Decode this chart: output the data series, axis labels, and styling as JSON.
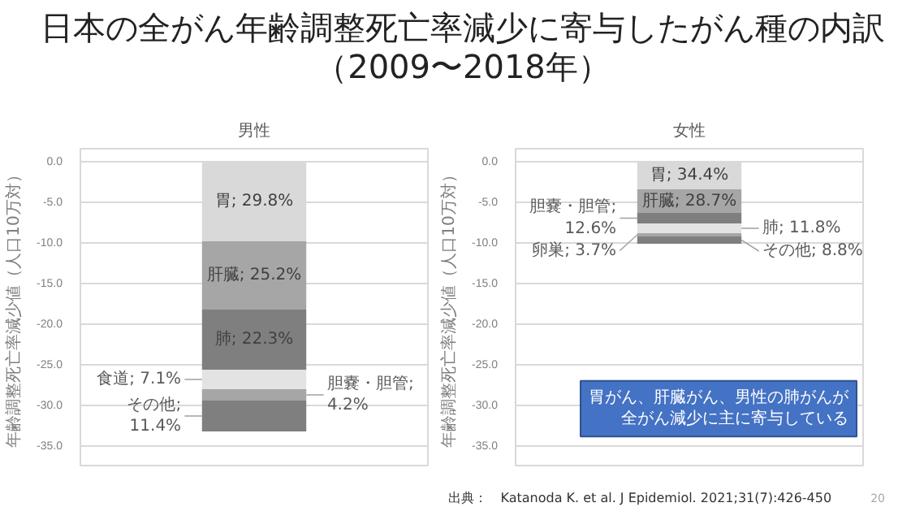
{
  "chart_data": [
    {
      "type": "bar",
      "stacked": true,
      "title": "日本の全がん年齢調整死亡率減少に寄与したがん種の内訳（2009〜2018年）",
      "subtitle": "男性",
      "ylabel": "年齢調整死亡率減少値（人口10万対）",
      "categories": [
        null
      ],
      "ylim": [
        -37.5,
        1.5
      ],
      "yticks": [
        {
          "value": 0,
          "label": "0.0"
        },
        {
          "value": -5,
          "label": "-5.0"
        },
        {
          "value": -10,
          "label": "-10.0"
        },
        {
          "value": -15,
          "label": "-15.0"
        },
        {
          "value": -20,
          "label": "-20.0"
        },
        {
          "value": -25,
          "label": "-25.0"
        },
        {
          "value": -30,
          "label": "-30.0"
        },
        {
          "value": -35,
          "label": "-35.0"
        }
      ],
      "grid": "y",
      "series": [
        {
          "color": "#d9d9d9",
          "values": [
            -9.9
          ]
        },
        {
          "color": "#a6a6a6",
          "values": [
            -8.4
          ]
        },
        {
          "color": "#7f7f7f",
          "values": [
            -7.4
          ]
        },
        {
          "color": "#e3e3e3",
          "values": [
            -2.4
          ]
        },
        {
          "color": "#a6a6a6",
          "values": [
            -1.4
          ]
        },
        {
          "color": "#7f7f7f",
          "values": [
            -3.8
          ]
        }
      ],
      "annotations": [
        "胃; 29.8%",
        "肝臓; 25.2%",
        "肺; 22.3%",
        "食道; 7.1%",
        "胆嚢・胆管; 4.2%",
        "その他; 11.4%"
      ]
    },
    {
      "type": "bar",
      "stacked": true,
      "subtitle": "女性",
      "ylabel": "年齢調整死亡率減少値（人口10万対）",
      "categories": [
        null
      ],
      "ylim": [
        -37.5,
        1.5
      ],
      "yticks": [
        {
          "value": 0,
          "label": "0.0"
        },
        {
          "value": -5,
          "label": "-5.0"
        },
        {
          "value": -10,
          "label": "-10.0"
        },
        {
          "value": -15,
          "label": "-15.0"
        },
        {
          "value": -20,
          "label": "-20.0"
        },
        {
          "value": -25,
          "label": "-25.0"
        },
        {
          "value": -30,
          "label": "-30.0"
        },
        {
          "value": -35,
          "label": "-35.0"
        }
      ],
      "grid": "y",
      "series": [
        {
          "color": "#d9d9d9",
          "values": [
            -3.5
          ]
        },
        {
          "color": "#a6a6a6",
          "values": [
            -2.9
          ]
        },
        {
          "color": "#7f7f7f",
          "values": [
            -1.3
          ]
        },
        {
          "color": "#e3e3e3",
          "values": [
            -1.2
          ]
        },
        {
          "color": "#a6a6a6",
          "values": [
            -0.4
          ]
        },
        {
          "color": "#7f7f7f",
          "values": [
            -0.9
          ]
        }
      ],
      "annotations": [
        "胃; 34.4%",
        "肝臓; 28.7%",
        "胆嚢・胆管; 12.6%",
        "肺; 11.8%",
        "卵巣; 3.7%",
        "その他; 8.8%",
        "胃がん、肝臓がん、男性の肺がんが全がん減少に主に寄与している",
        "出典：　Katanoda K. et al. J Epidemiol. 2021;31(7):426-450",
        "20"
      ]
    }
  ]
}
